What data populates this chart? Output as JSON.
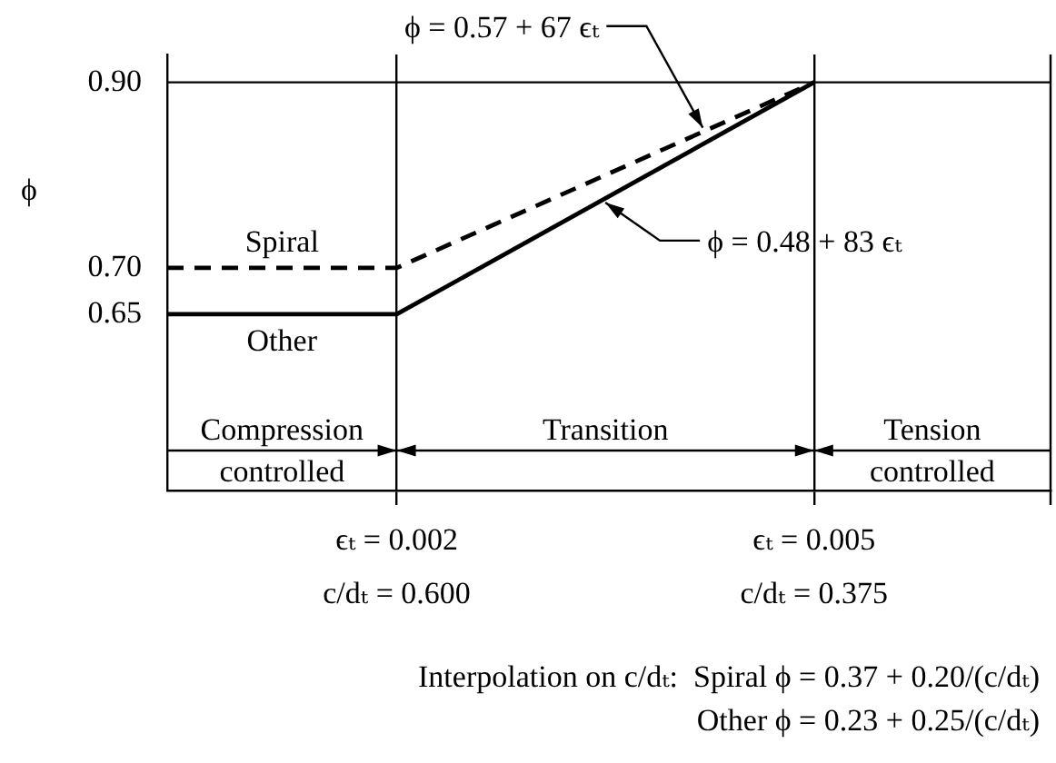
{
  "chart_data": {
    "type": "line",
    "ylabel": "ϕ",
    "xlim": [
      0.00035,
      0.0067
    ],
    "xticks": [
      {
        "value": 0.002,
        "label": "ϵₜ = 0.002"
      },
      {
        "value": 0.005,
        "label": "ϵₜ = 0.005"
      }
    ],
    "ylim": [
      0.46,
      0.93
    ],
    "yticks": [
      0.65,
      {
        "value": 0.7,
        "label": "0.70"
      },
      {
        "value": 0.9,
        "label": "0.90"
      }
    ],
    "series": [
      {
        "name": "Spiral",
        "color": "#000000",
        "line_style": "dashed",
        "x": [
          0.00035,
          0.002,
          0.005
        ],
        "values": [
          0.7,
          0.7,
          0.9
        ]
      },
      {
        "name": "Other",
        "color": "#000000",
        "line_style": "solid",
        "x": [
          0.00035,
          0.002,
          0.005
        ],
        "values": [
          0.65,
          0.65,
          0.9
        ]
      }
    ],
    "ref_lines": [
      {
        "axis": "y",
        "value": 0.9,
        "color": "#000000"
      }
    ],
    "annotations": [
      {
        "text": "ϕ = 0.57 + 67 ϵₜ",
        "x": 0.0042,
        "y": 0.851
      },
      {
        "text": "ϕ = 0.48 + 83 ϵₜ",
        "x": 0.0035,
        "y": 0.7705
      },
      "Compression controlled",
      "Transition",
      "Tension controlled",
      "c/dₜ = 0.600",
      "c/dₜ = 0.375",
      "Interpolation on c/dₜ:  Spiral ϕ = 0.37 + 0.20/(c/dₜ)",
      "Other ϕ = 0.23 + 0.25/(c/dₜ)"
    ],
    "grid": "x",
    "legend": false,
    "marker": "none"
  }
}
